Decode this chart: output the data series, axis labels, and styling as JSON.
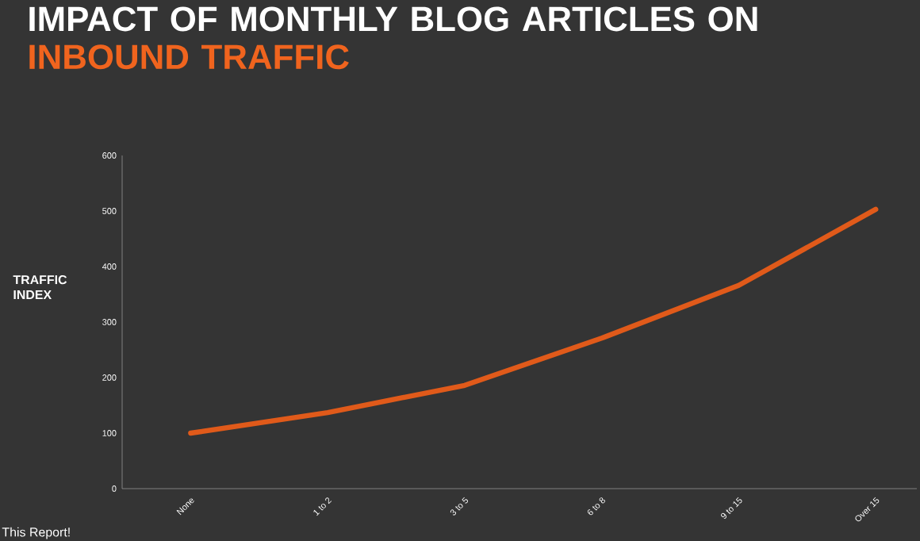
{
  "chart_data": {
    "type": "line",
    "title": "IMPACT OF MONTHLY BLOG ARTICLES ON",
    "subtitle": "INBOUND TRAFFIC",
    "ylabel": "TRAFFIC INDEX",
    "categories": [
      "None",
      "1 to 2",
      "3 to 5",
      "6 to 8",
      "9 to 15",
      "Over 15"
    ],
    "series": [
      {
        "color": "#e05a1a",
        "values": [
          100,
          137,
          186,
          271,
          366,
          503
        ]
      }
    ],
    "ylim": [
      0,
      600
    ],
    "yticks": [
      0,
      100,
      200,
      300,
      400,
      500,
      600
    ],
    "grid": false,
    "marker": "none",
    "line_style": "solid",
    "annotations": [
      "This Report!"
    ]
  }
}
